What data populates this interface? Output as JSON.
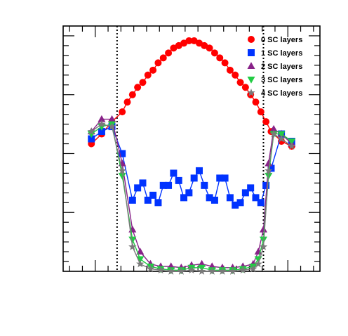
{
  "chart_data": {
    "type": "line",
    "title": "",
    "xlabel": "",
    "ylabel": "",
    "xlim": [
      0,
      100
    ],
    "ylim": [
      0,
      100
    ],
    "grid": false,
    "legend_position": "top-right",
    "vertical_lines": [
      21,
      78
    ],
    "series": [
      {
        "name": "0 SC layers",
        "color": "#ff0000",
        "marker": "circle",
        "x": [
          11,
          15,
          19,
          23,
          25,
          27,
          29,
          31,
          33,
          35,
          37,
          39,
          41,
          43,
          45,
          47,
          49,
          51,
          53,
          55,
          57,
          59,
          61,
          63,
          65,
          67,
          69,
          71,
          73,
          75,
          77,
          79,
          81,
          85,
          89
        ],
        "y": [
          52,
          56,
          61,
          65,
          69,
          72,
          75,
          77,
          80,
          82,
          85,
          87,
          89,
          91,
          92,
          93,
          94,
          94,
          93,
          92,
          91,
          89,
          87,
          85,
          82,
          80,
          77,
          75,
          72,
          69,
          65,
          61,
          57,
          53,
          51
        ]
      },
      {
        "name": "1 SC layers",
        "color": "#0033ff",
        "marker": "square",
        "x": [
          11,
          15,
          19,
          23,
          27,
          29,
          31,
          33,
          35,
          37,
          39,
          41,
          43,
          45,
          47,
          49,
          51,
          53,
          55,
          57,
          59,
          61,
          63,
          65,
          67,
          69,
          71,
          73,
          75,
          77,
          79,
          81,
          85,
          89
        ],
        "y": [
          54,
          57,
          59,
          48,
          29,
          34,
          36,
          29,
          31,
          28,
          35,
          35,
          40,
          37,
          30,
          32,
          38,
          41,
          35,
          30,
          29,
          38,
          38,
          30,
          27,
          28,
          32,
          34,
          30,
          28,
          35,
          42,
          56,
          53
        ]
      },
      {
        "name": "2 SC layers",
        "color": "#882288",
        "marker": "triangle-up",
        "x": [
          11,
          15,
          19,
          23,
          27,
          30,
          34,
          38,
          42,
          46,
          50,
          54,
          58,
          62,
          66,
          70,
          74,
          76,
          78,
          80,
          82,
          85,
          89
        ],
        "y": [
          57,
          62,
          62,
          44,
          17,
          8,
          3,
          2,
          2,
          1.5,
          2.5,
          3,
          2,
          1.5,
          1.5,
          2,
          3,
          8,
          17,
          44,
          58,
          56,
          52
        ]
      },
      {
        "name": "3 SC layers",
        "color": "#22cc44",
        "marker": "triangle-down",
        "x": [
          11,
          15,
          19,
          23,
          27,
          30,
          34,
          38,
          42,
          46,
          50,
          54,
          58,
          62,
          66,
          70,
          74,
          76,
          78,
          80,
          82,
          85,
          89
        ],
        "y": [
          56,
          59,
          60,
          39,
          13,
          5,
          2,
          1,
          0.5,
          0.5,
          1.5,
          1.5,
          0.5,
          0.5,
          0.5,
          1,
          2,
          5,
          13,
          39,
          56,
          56,
          53
        ]
      },
      {
        "name": "4 SC layers",
        "color": "#7a7a7a",
        "marker": "star",
        "x": [
          11,
          15,
          19,
          23,
          27,
          30,
          34,
          38,
          42,
          46,
          50,
          54,
          58,
          62,
          66,
          70,
          74,
          76,
          78,
          80,
          82,
          85,
          89
        ],
        "y": [
          57,
          60,
          59,
          41,
          10,
          3,
          1,
          0.5,
          0,
          0,
          0.5,
          0,
          0,
          0,
          0,
          0.5,
          1,
          3,
          10,
          41,
          56,
          54,
          51
        ]
      }
    ]
  }
}
